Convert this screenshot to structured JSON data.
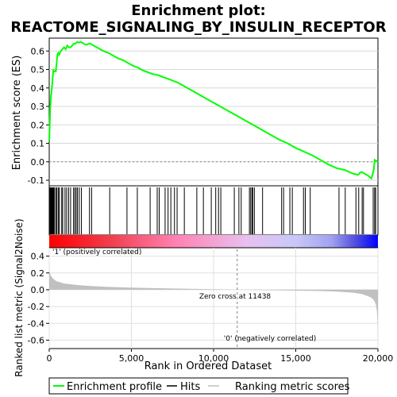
{
  "title_line1": "Enrichment plot:",
  "title_line2": "REACTOME_SIGNALING_BY_INSULIN_RECEPTOR",
  "colors": {
    "es_line": "#00ff00",
    "hits": "#000000",
    "metric_fill": "#c0c0c0",
    "zero_line": "#808080",
    "pos_label": "#ff0000",
    "neg_label": "#0000ff",
    "frame": "#000000"
  },
  "chart_data": [
    {
      "type": "line",
      "name": "enrichment-profile",
      "ylabel": "Enrichment score (ES)",
      "xlim": [
        0,
        20000
      ],
      "ylim": [
        -0.13,
        0.67
      ],
      "yticks": [
        -0.1,
        0.0,
        0.1,
        0.2,
        0.3,
        0.4,
        0.5,
        0.6
      ],
      "ytick_labels": [
        "-0.1",
        "0.0",
        "0.1",
        "0.2",
        "0.3",
        "0.4",
        "0.5",
        "0.6"
      ],
      "grid": true,
      "x": [
        0,
        30,
        60,
        100,
        150,
        200,
        250,
        300,
        400,
        500,
        550,
        600,
        700,
        800,
        900,
        1000,
        1100,
        1200,
        1300,
        1400,
        1500,
        1600,
        1700,
        1800,
        1900,
        2000,
        2100,
        2200,
        2300,
        2400,
        2500,
        2600,
        2800,
        3000,
        3300,
        3600,
        3900,
        4200,
        4500,
        4800,
        5100,
        5400,
        5700,
        6000,
        6300,
        6600,
        6900,
        7200,
        7500,
        7800,
        8100,
        8400,
        8700,
        9000,
        9500,
        10000,
        10500,
        11000,
        11500,
        12000,
        12500,
        13000,
        13500,
        14000,
        14500,
        15000,
        15500,
        16000,
        16500,
        17000,
        17500,
        18000,
        18500,
        18800,
        18900,
        19000,
        19200,
        19400,
        19600,
        19700,
        19750,
        19800,
        19900,
        20000
      ],
      "y": [
        0.11,
        0.2,
        0.29,
        0.35,
        0.39,
        0.44,
        0.5,
        0.49,
        0.49,
        0.58,
        0.59,
        0.58,
        0.6,
        0.61,
        0.62,
        0.61,
        0.63,
        0.62,
        0.62,
        0.63,
        0.64,
        0.64,
        0.65,
        0.645,
        0.65,
        0.645,
        0.64,
        0.635,
        0.635,
        0.64,
        0.64,
        0.635,
        0.625,
        0.615,
        0.6,
        0.59,
        0.575,
        0.56,
        0.55,
        0.535,
        0.52,
        0.51,
        0.495,
        0.485,
        0.475,
        0.47,
        0.46,
        0.45,
        0.44,
        0.43,
        0.415,
        0.4,
        0.385,
        0.37,
        0.345,
        0.32,
        0.295,
        0.27,
        0.245,
        0.22,
        0.195,
        0.17,
        0.145,
        0.12,
        0.1,
        0.075,
        0.055,
        0.035,
        0.01,
        -0.015,
        -0.035,
        -0.045,
        -0.065,
        -0.07,
        -0.06,
        -0.055,
        -0.065,
        -0.075,
        -0.09,
        -0.06,
        -0.04,
        0.01,
        0.005,
        -0.001
      ]
    },
    {
      "type": "line",
      "name": "hits",
      "x": [
        20,
        60,
        100,
        130,
        170,
        200,
        240,
        280,
        330,
        420,
        470,
        560,
        620,
        760,
        820,
        960,
        1060,
        1180,
        1300,
        1480,
        1560,
        1640,
        1720,
        1830,
        1960,
        2450,
        2580,
        3680,
        4730,
        5360,
        6140,
        6570,
        6690,
        7050,
        7230,
        7400,
        7620,
        7780,
        8220,
        8980,
        9380,
        9860,
        10130,
        10300,
        10440,
        11260,
        11540,
        11680,
        12180,
        12260,
        12340,
        12380,
        12480,
        12980,
        14140,
        14260,
        14640,
        14790,
        15470,
        15580,
        15880,
        17630,
        18010,
        18660,
        18830,
        19040,
        19120,
        19710,
        19800,
        19860
      ]
    },
    {
      "type": "area",
      "name": "ranking-metric-scores",
      "xlabel": "Rank in Ordered Dataset",
      "ylabel": "Ranked list metric (Signal2Noise)",
      "xlim": [
        0,
        20000
      ],
      "ylim": [
        -0.7,
        0.5
      ],
      "xticks": [
        0,
        5000,
        10000,
        15000,
        20000
      ],
      "xtick_labels": [
        "0",
        "5,000",
        "10,000",
        "15,000",
        "20,000"
      ],
      "yticks": [
        -0.6,
        -0.4,
        -0.2,
        0.0,
        0.2,
        0.4
      ],
      "ytick_labels": [
        "-0.6",
        "-0.4",
        "-0.2",
        "0.0",
        "0.2",
        "0.4"
      ],
      "grid": true,
      "x": [
        0,
        20,
        60,
        120,
        200,
        300,
        450,
        650,
        900,
        1300,
        1800,
        2500,
        3500,
        5000,
        7000,
        9000,
        11000,
        11438,
        13000,
        15000,
        16500,
        17500,
        18500,
        19000,
        19300,
        19550,
        19700,
        19800,
        19880,
        19940,
        19980,
        20000
      ],
      "y": [
        0.28,
        0.22,
        0.19,
        0.16,
        0.14,
        0.12,
        0.1,
        0.09,
        0.075,
        0.065,
        0.055,
        0.045,
        0.035,
        0.025,
        0.017,
        0.01,
        0.003,
        0.0,
        -0.005,
        -0.01,
        -0.015,
        -0.022,
        -0.035,
        -0.05,
        -0.07,
        -0.09,
        -0.11,
        -0.14,
        -0.18,
        -0.26,
        -0.4,
        -0.65
      ],
      "annotations": {
        "zero_cross": "Zero cross at 11438",
        "positive": "'1' (positively correlated)",
        "negative": "'0' (negatively correlated)"
      },
      "zero_cross_rank": 11438
    }
  ],
  "legend": {
    "position": "bottom",
    "items": [
      {
        "label": "Enrichment profile",
        "color": "#00ff00"
      },
      {
        "label": "Hits",
        "color": "#000000"
      },
      {
        "label": "Ranking metric scores",
        "color": "#c0c0c0"
      }
    ]
  }
}
